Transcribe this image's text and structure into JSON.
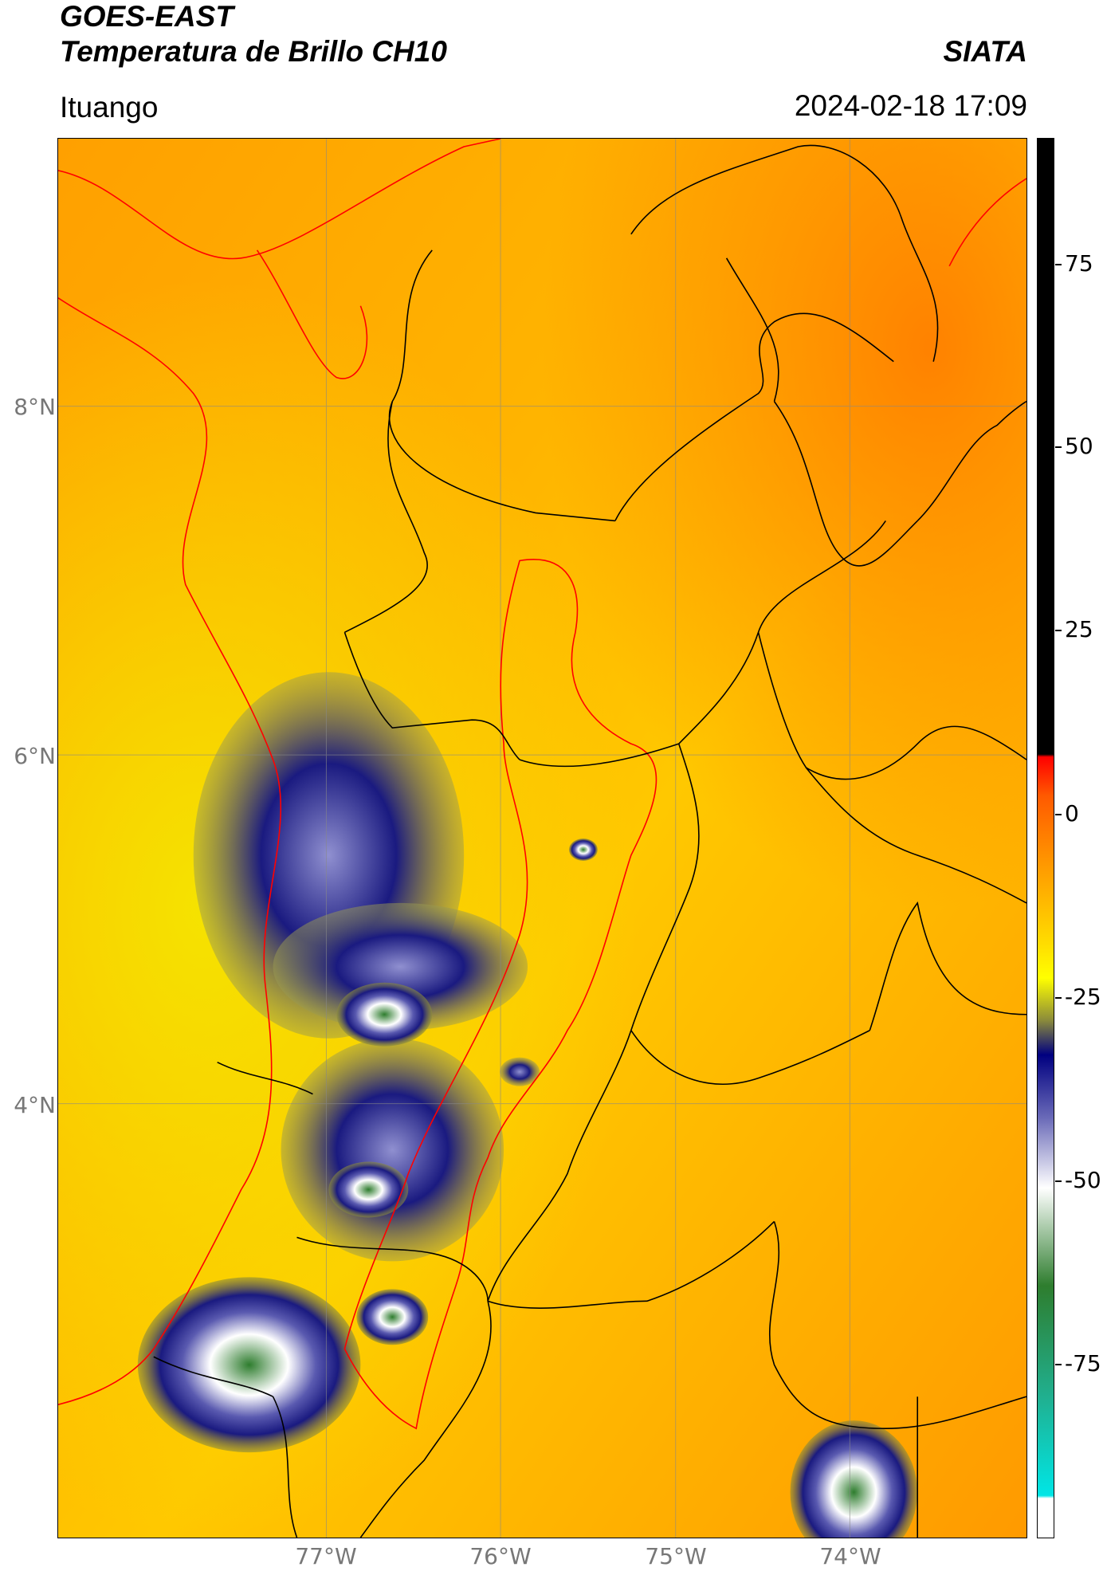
{
  "header": {
    "satellite": "GOES-EAST",
    "product": "Temperatura de Brillo CH10",
    "brand": "SIATA",
    "location": "Ituango",
    "datetime": "2024-02-18 17:09"
  },
  "map": {
    "lat_labels": [
      "8°N",
      "6°N",
      "4°N"
    ],
    "lon_labels": [
      "77°W",
      "76°W",
      "75°W",
      "74°W"
    ],
    "border_colors": {
      "national": "#ff0000",
      "department": "#000000"
    }
  },
  "colorbar": {
    "tick_labels": [
      "75",
      "50",
      "25",
      "0",
      "-25",
      "-50",
      "-75"
    ],
    "colors": {
      "top": "#000000",
      "warm": "#ff0000",
      "orange": "#ff8c00",
      "yellow": "#ffff00",
      "olive": "#8c8c3a",
      "navy": "#000080",
      "white": "#ffffff",
      "green": "#2e7d2e",
      "cyan": "#00e6e6"
    }
  }
}
